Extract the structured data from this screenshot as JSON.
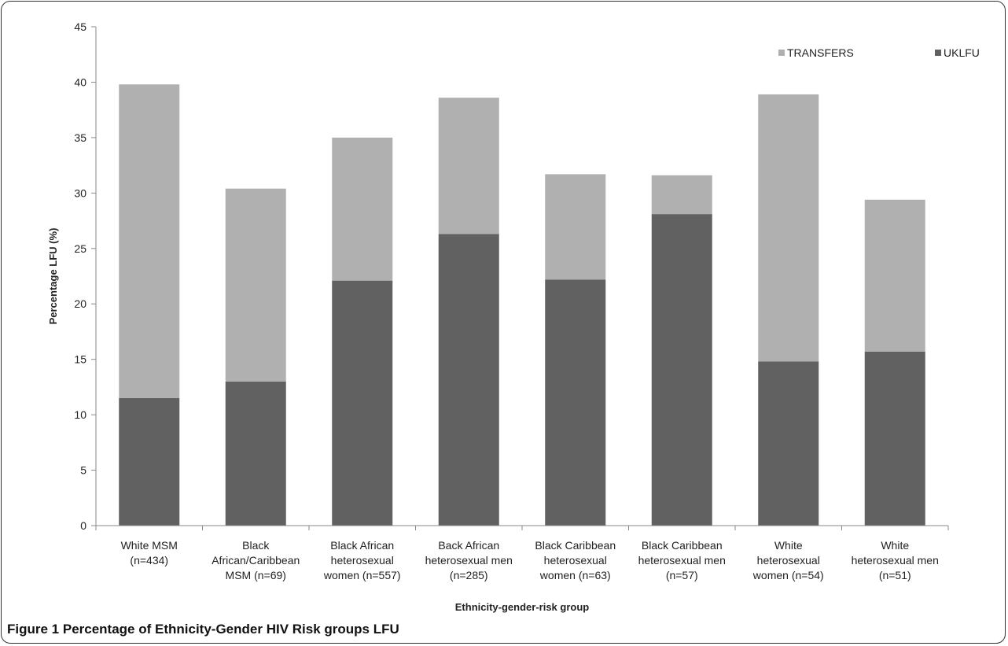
{
  "chart_data": {
    "type": "bar",
    "stacked": true,
    "title": "",
    "xlabel": "Ethnicity-gender-risk group",
    "ylabel": "Percentage LFU (%)",
    "ylim": [
      0,
      45
    ],
    "yticks": [
      0,
      5,
      10,
      15,
      20,
      25,
      30,
      35,
      40,
      45
    ],
    "grid": false,
    "legend_position": "top-right",
    "categories": [
      [
        "White MSM",
        "(n=434)"
      ],
      [
        "Black",
        "African/Caribbean",
        "MSM (n=69)"
      ],
      [
        "Black African",
        "heterosexual",
        "women (n=557)"
      ],
      [
        "Back African",
        "heterosexual men",
        "(n=285)"
      ],
      [
        "Black Caribbean",
        "heterosexual",
        "women (n=63)"
      ],
      [
        "Black Caribbean",
        "heterosexual men",
        "(n=57)"
      ],
      [
        "White",
        "heterosexual",
        "women (n=54)"
      ],
      [
        "White",
        "heterosexual men",
        "(n=51)"
      ]
    ],
    "series": [
      {
        "name": "UKLFU",
        "color": "#616161",
        "values": [
          11.5,
          13.0,
          22.1,
          26.3,
          22.2,
          28.1,
          14.8,
          15.7
        ]
      },
      {
        "name": "TRANSFERS",
        "color": "#b0b0b0",
        "values": [
          28.3,
          17.4,
          12.9,
          12.3,
          9.5,
          3.5,
          24.1,
          13.7
        ]
      }
    ],
    "legend_order": [
      "TRANSFERS",
      "UKLFU"
    ]
  },
  "caption": {
    "lead": "Figure 1",
    "text": "Percentage of Ethnicity-Gender HIV Risk groups LFU"
  }
}
